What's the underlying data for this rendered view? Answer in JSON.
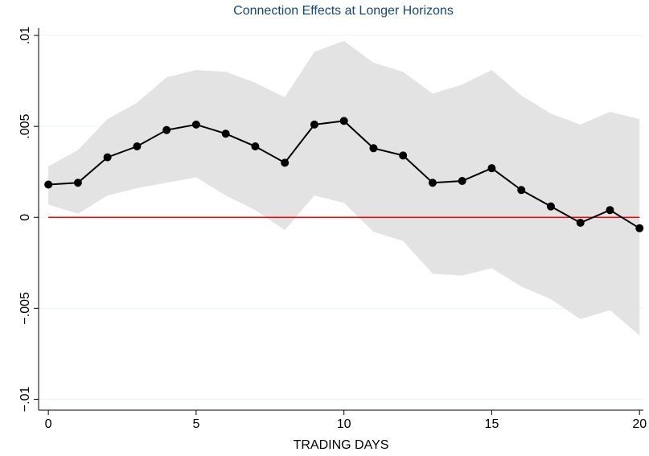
{
  "chart_data": {
    "type": "line",
    "title": "Connection Effects at Longer Horizons",
    "x_label": "TRADING DAYS",
    "x": [
      0,
      1,
      2,
      3,
      4,
      5,
      6,
      7,
      8,
      9,
      10,
      11,
      12,
      13,
      14,
      15,
      16,
      17,
      18,
      19,
      20
    ],
    "values": [
      0.0018,
      0.0019,
      0.0033,
      0.0039,
      0.0048,
      0.0051,
      0.0046,
      0.0039,
      0.003,
      0.0051,
      0.0053,
      0.0038,
      0.0034,
      0.0019,
      0.002,
      0.0027,
      0.0015,
      0.0006,
      -0.0003,
      0.0004,
      -0.0006
    ],
    "ci_upper": [
      0.0028,
      0.0037,
      0.0054,
      0.0063,
      0.0077,
      0.0081,
      0.008,
      0.0074,
      0.0066,
      0.0091,
      0.0097,
      0.0085,
      0.008,
      0.0068,
      0.0073,
      0.0081,
      0.0067,
      0.0057,
      0.0051,
      0.0058,
      0.0054
    ],
    "ci_lower": [
      0.0007,
      0.0002,
      0.0012,
      0.0016,
      0.0019,
      0.0022,
      0.0012,
      0.0004,
      -0.0007,
      0.0012,
      0.0008,
      -0.0008,
      -0.0013,
      -0.0031,
      -0.0032,
      -0.0028,
      -0.0038,
      -0.0045,
      -0.0056,
      -0.0051,
      -0.0065
    ],
    "color": "#000000",
    "band_color": "#e3e3e3",
    "hline": 0,
    "hline_color": "#ff0000",
    "xlim": [
      -0.33,
      20.13
    ],
    "ylim": [
      -0.0106,
      0.0104
    ],
    "xticks": [
      0,
      5,
      10,
      15,
      20
    ],
    "yticks": [
      {
        "value": -0.01,
        "label": "−.01"
      },
      {
        "value": -0.005,
        "label": "−.005"
      },
      0,
      {
        "value": 0.005,
        "label": ".005"
      },
      {
        "value": 0.01,
        "label": ".01"
      }
    ],
    "grid": true
  }
}
